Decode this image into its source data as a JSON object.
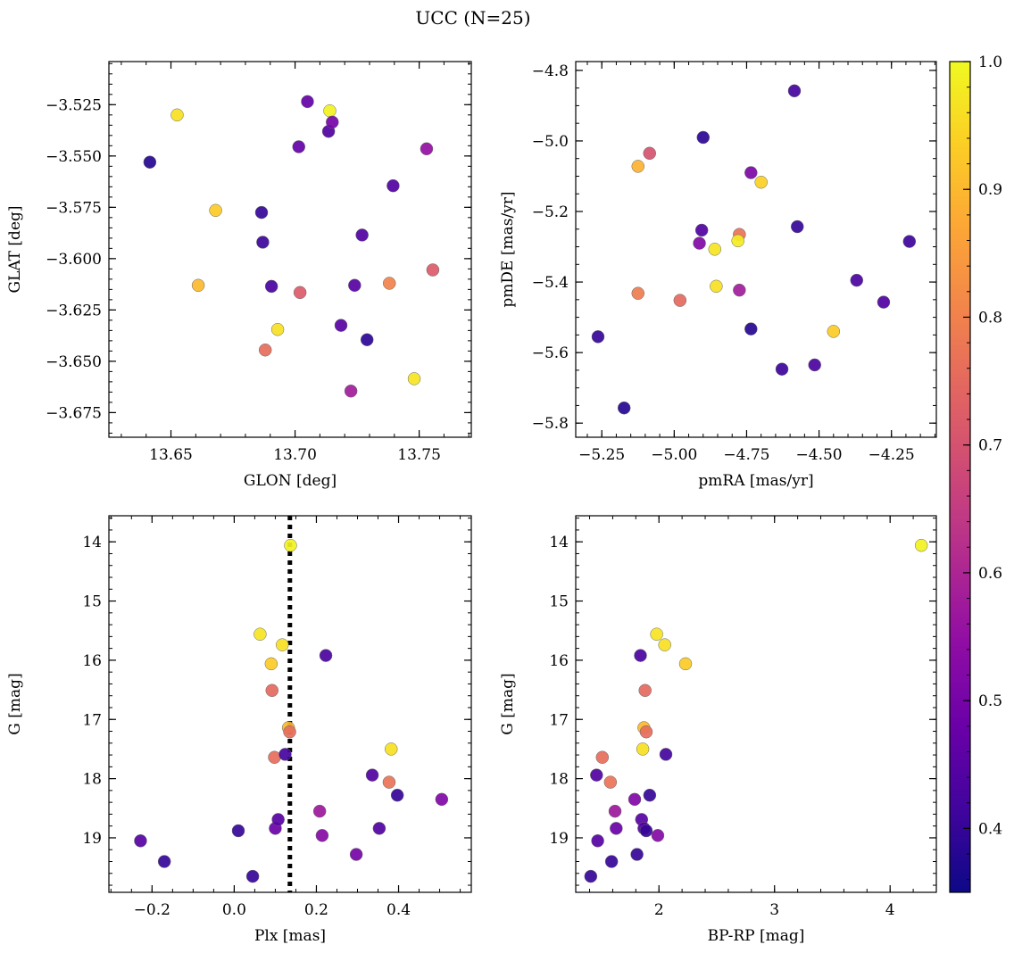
{
  "title": "UCC (N=25)",
  "colorbar": {
    "range": [
      0.35,
      1.0
    ],
    "ticks": [
      0.4,
      0.5,
      0.6,
      0.7,
      0.8,
      0.9,
      1.0
    ],
    "tick_labels": [
      "0.4",
      "0.5",
      "0.6",
      "0.7",
      "0.8",
      "0.9",
      "1.0"
    ],
    "colormap": "plasma"
  },
  "chart_data": [
    {
      "type": "scatter",
      "name": "glon-glat",
      "xlabel": "GLON [deg]",
      "ylabel": "GLAT [deg]",
      "xlim": [
        13.625,
        13.771
      ],
      "ylim": [
        -3.687,
        -3.504
      ],
      "xticks": [
        13.65,
        13.7,
        13.75
      ],
      "xtick_labels": [
        "13.65",
        "13.70",
        "13.75"
      ],
      "yticks": [
        -3.525,
        -3.55,
        -3.575,
        -3.6,
        -3.625,
        -3.65,
        -3.675
      ],
      "ytick_labels": [
        "−3.525",
        "−3.550",
        "−3.575",
        "−3.600",
        "−3.625",
        "−3.650",
        "−3.675"
      ],
      "x_minor_step": 0.01,
      "y_minor_step": 0.005,
      "points": [
        {
          "x": 13.6415,
          "y": -3.553,
          "c": 0.38
        },
        {
          "x": 13.6525,
          "y": -3.53,
          "c": 0.96
        },
        {
          "x": 13.668,
          "y": -3.5765,
          "c": 0.93
        },
        {
          "x": 13.661,
          "y": -3.613,
          "c": 0.9
        },
        {
          "x": 13.6865,
          "y": -3.5775,
          "c": 0.4
        },
        {
          "x": 13.687,
          "y": -3.592,
          "c": 0.41
        },
        {
          "x": 13.6905,
          "y": -3.6135,
          "c": 0.43
        },
        {
          "x": 13.688,
          "y": -3.6445,
          "c": 0.76
        },
        {
          "x": 13.693,
          "y": -3.6345,
          "c": 0.96
        },
        {
          "x": 13.702,
          "y": -3.6165,
          "c": 0.72
        },
        {
          "x": 13.7015,
          "y": -3.5455,
          "c": 0.47
        },
        {
          "x": 13.705,
          "y": -3.5235,
          "c": 0.47
        },
        {
          "x": 13.7135,
          "y": -3.538,
          "c": 0.44
        },
        {
          "x": 13.714,
          "y": -3.528,
          "c": 0.99
        },
        {
          "x": 13.715,
          "y": -3.5335,
          "c": 0.5
        },
        {
          "x": 13.7225,
          "y": -3.6645,
          "c": 0.58
        },
        {
          "x": 13.7185,
          "y": -3.6325,
          "c": 0.45
        },
        {
          "x": 13.724,
          "y": -3.613,
          "c": 0.45
        },
        {
          "x": 13.727,
          "y": -3.5885,
          "c": 0.44
        },
        {
          "x": 13.729,
          "y": -3.6395,
          "c": 0.39
        },
        {
          "x": 13.738,
          "y": -3.612,
          "c": 0.8
        },
        {
          "x": 13.7395,
          "y": -3.5645,
          "c": 0.44
        },
        {
          "x": 13.748,
          "y": -3.6585,
          "c": 0.97
        },
        {
          "x": 13.753,
          "y": -3.5465,
          "c": 0.55
        },
        {
          "x": 13.7555,
          "y": -3.6055,
          "c": 0.72
        }
      ]
    },
    {
      "type": "scatter",
      "name": "pmra-pmde",
      "xlabel": "pmRA [mas/yr]",
      "ylabel": "pmDE [mas/yr]",
      "xlim": [
        -5.34,
        -4.095
      ],
      "ylim": [
        -5.84,
        -4.775
      ],
      "xticks": [
        -5.25,
        -5.0,
        -4.75,
        -4.5,
        -4.25
      ],
      "xtick_labels": [
        "−5.25",
        "−5.00",
        "−4.75",
        "−4.50",
        "−4.25"
      ],
      "yticks": [
        -4.8,
        -5.0,
        -5.2,
        -5.4,
        -5.6,
        -5.8
      ],
      "ytick_labels": [
        "−4.8",
        "−5.0",
        "−5.2",
        "−5.4",
        "−5.6",
        "−5.8"
      ],
      "x_minor_step": 0.05,
      "y_minor_step": 0.05,
      "points": [
        {
          "x": -5.263,
          "y": -5.555,
          "c": 0.4
        },
        {
          "x": -5.173,
          "y": -5.757,
          "c": 0.38
        },
        {
          "x": -5.125,
          "y": -5.072,
          "c": 0.89
        },
        {
          "x": -5.125,
          "y": -5.432,
          "c": 0.79
        },
        {
          "x": -5.085,
          "y": -5.035,
          "c": 0.7
        },
        {
          "x": -4.98,
          "y": -5.452,
          "c": 0.75
        },
        {
          "x": -4.9,
          "y": -4.99,
          "c": 0.39
        },
        {
          "x": -4.905,
          "y": -5.253,
          "c": 0.44
        },
        {
          "x": -4.913,
          "y": -5.29,
          "c": 0.52
        },
        {
          "x": -4.86,
          "y": -5.307,
          "c": 0.97
        },
        {
          "x": -4.855,
          "y": -5.412,
          "c": 0.96
        },
        {
          "x": -4.775,
          "y": -5.265,
          "c": 0.77
        },
        {
          "x": -4.78,
          "y": -5.283,
          "c": 0.98
        },
        {
          "x": -4.775,
          "y": -5.423,
          "c": 0.58
        },
        {
          "x": -4.735,
          "y": -5.09,
          "c": 0.51
        },
        {
          "x": -4.735,
          "y": -5.533,
          "c": 0.38
        },
        {
          "x": -4.7,
          "y": -5.117,
          "c": 0.94
        },
        {
          "x": -4.628,
          "y": -5.647,
          "c": 0.41
        },
        {
          "x": -4.585,
          "y": -4.858,
          "c": 0.42
        },
        {
          "x": -4.575,
          "y": -5.243,
          "c": 0.4
        },
        {
          "x": -4.515,
          "y": -5.635,
          "c": 0.43
        },
        {
          "x": -4.45,
          "y": -5.54,
          "c": 0.93
        },
        {
          "x": -4.37,
          "y": -5.395,
          "c": 0.43
        },
        {
          "x": -4.277,
          "y": -5.457,
          "c": 0.44
        },
        {
          "x": -4.188,
          "y": -5.285,
          "c": 0.41
        }
      ]
    },
    {
      "type": "scatter",
      "name": "plx-g",
      "xlabel": "Plx [mas]",
      "ylabel": "G [mag]",
      "xlim": [
        -0.305,
        0.577
      ],
      "ylim": [
        19.92,
        13.56
      ],
      "xticks": [
        -0.2,
        0.0,
        0.2,
        0.4
      ],
      "xtick_labels": [
        "−0.2",
        "0.0",
        "0.2",
        "0.4"
      ],
      "yticks": [
        14,
        15,
        16,
        17,
        18,
        19
      ],
      "ytick_labels": [
        "14",
        "15",
        "16",
        "17",
        "18",
        "19"
      ],
      "x_minor_step": 0.05,
      "y_minor_step": 0.2,
      "vline": 0.1355,
      "points": [
        {
          "x": -0.228,
          "y": 19.05,
          "c": 0.45
        },
        {
          "x": -0.17,
          "y": 19.4,
          "c": 0.4
        },
        {
          "x": 0.01,
          "y": 18.88,
          "c": 0.4
        },
        {
          "x": 0.045,
          "y": 19.65,
          "c": 0.4
        },
        {
          "x": 0.063,
          "y": 15.56,
          "c": 0.97
        },
        {
          "x": 0.09,
          "y": 16.06,
          "c": 0.93
        },
        {
          "x": 0.092,
          "y": 16.51,
          "c": 0.75
        },
        {
          "x": 0.098,
          "y": 17.64,
          "c": 0.76
        },
        {
          "x": 0.1,
          "y": 18.84,
          "c": 0.48
        },
        {
          "x": 0.107,
          "y": 18.69,
          "c": 0.45
        },
        {
          "x": 0.117,
          "y": 15.74,
          "c": 0.96
        },
        {
          "x": 0.124,
          "y": 17.59,
          "c": 0.42
        },
        {
          "x": 0.132,
          "y": 17.14,
          "c": 0.9
        },
        {
          "x": 0.135,
          "y": 17.21,
          "c": 0.76
        },
        {
          "x": 0.137,
          "y": 14.06,
          "c": 0.99
        },
        {
          "x": 0.208,
          "y": 18.55,
          "c": 0.57
        },
        {
          "x": 0.214,
          "y": 18.96,
          "c": 0.53
        },
        {
          "x": 0.223,
          "y": 15.92,
          "c": 0.43
        },
        {
          "x": 0.297,
          "y": 19.28,
          "c": 0.5
        },
        {
          "x": 0.336,
          "y": 17.94,
          "c": 0.44
        },
        {
          "x": 0.353,
          "y": 18.84,
          "c": 0.44
        },
        {
          "x": 0.377,
          "y": 18.06,
          "c": 0.77
        },
        {
          "x": 0.382,
          "y": 17.5,
          "c": 0.96
        },
        {
          "x": 0.397,
          "y": 18.28,
          "c": 0.4
        },
        {
          "x": 0.505,
          "y": 18.35,
          "c": 0.52
        }
      ]
    },
    {
      "type": "scatter",
      "name": "bprp-g",
      "xlabel": "BP-RP [mag]",
      "ylabel": "G [mag]",
      "xlim": [
        1.28,
        4.4
      ],
      "ylim": [
        19.92,
        13.56
      ],
      "xticks": [
        2,
        3,
        4
      ],
      "xtick_labels": [
        "2",
        "3",
        "4"
      ],
      "yticks": [
        14,
        15,
        16,
        17,
        18,
        19
      ],
      "ytick_labels": [
        "14",
        "15",
        "16",
        "17",
        "18",
        "19"
      ],
      "x_minor_step": 0.2,
      "y_minor_step": 0.2,
      "points": [
        {
          "x": 1.41,
          "y": 19.65,
          "c": 0.4
        },
        {
          "x": 1.46,
          "y": 17.94,
          "c": 0.44
        },
        {
          "x": 1.47,
          "y": 19.05,
          "c": 0.45
        },
        {
          "x": 1.51,
          "y": 17.64,
          "c": 0.76
        },
        {
          "x": 1.58,
          "y": 18.06,
          "c": 0.77
        },
        {
          "x": 1.59,
          "y": 19.4,
          "c": 0.4
        },
        {
          "x": 1.62,
          "y": 18.55,
          "c": 0.57
        },
        {
          "x": 1.63,
          "y": 18.84,
          "c": 0.48
        },
        {
          "x": 1.79,
          "y": 18.35,
          "c": 0.52
        },
        {
          "x": 1.81,
          "y": 19.28,
          "c": 0.4
        },
        {
          "x": 1.84,
          "y": 15.92,
          "c": 0.43
        },
        {
          "x": 1.85,
          "y": 18.69,
          "c": 0.45
        },
        {
          "x": 1.86,
          "y": 17.5,
          "c": 0.96
        },
        {
          "x": 1.87,
          "y": 17.14,
          "c": 0.9
        },
        {
          "x": 1.87,
          "y": 18.84,
          "c": 0.44
        },
        {
          "x": 1.88,
          "y": 16.51,
          "c": 0.75
        },
        {
          "x": 1.89,
          "y": 17.21,
          "c": 0.76
        },
        {
          "x": 1.89,
          "y": 18.88,
          "c": 0.4
        },
        {
          "x": 1.92,
          "y": 18.28,
          "c": 0.4
        },
        {
          "x": 1.98,
          "y": 15.56,
          "c": 0.97
        },
        {
          "x": 1.99,
          "y": 18.96,
          "c": 0.53
        },
        {
          "x": 2.05,
          "y": 15.74,
          "c": 0.96
        },
        {
          "x": 2.06,
          "y": 17.59,
          "c": 0.42
        },
        {
          "x": 2.23,
          "y": 16.06,
          "c": 0.93
        },
        {
          "x": 4.27,
          "y": 14.06,
          "c": 0.99
        }
      ]
    }
  ]
}
